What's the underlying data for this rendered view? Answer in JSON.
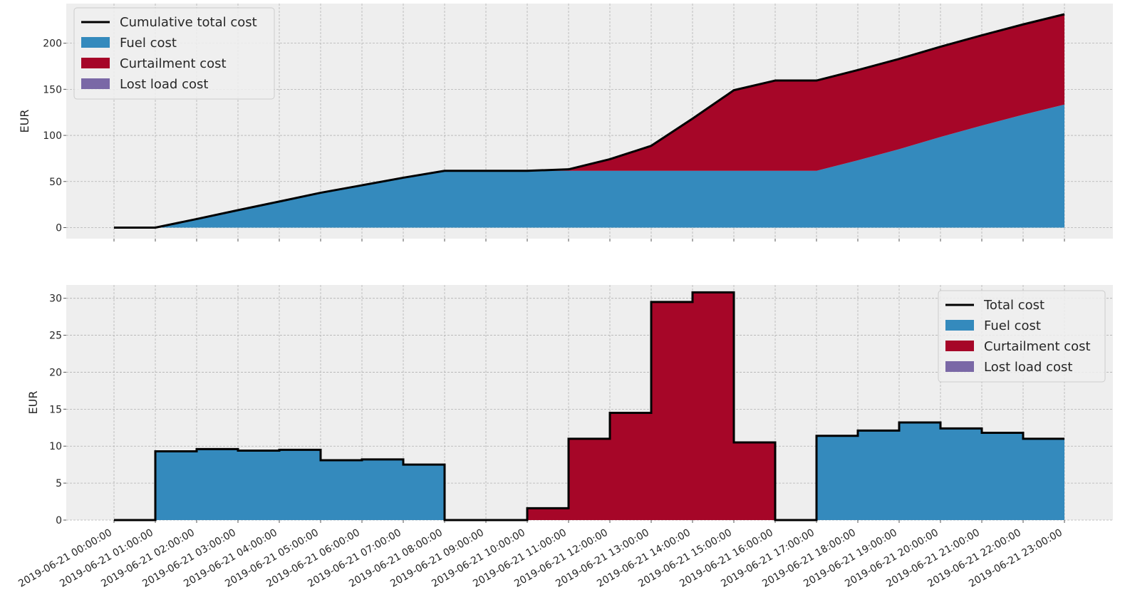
{
  "chart_data": [
    {
      "type": "area",
      "ylabel": "EUR",
      "ylim": [
        -12,
        243
      ],
      "yticks": [
        0,
        50,
        100,
        150,
        200
      ],
      "x": [
        "2019-06-21 00:00:00",
        "2019-06-21 01:00:00",
        "2019-06-21 02:00:00",
        "2019-06-21 03:00:00",
        "2019-06-21 04:00:00",
        "2019-06-21 05:00:00",
        "2019-06-21 06:00:00",
        "2019-06-21 07:00:00",
        "2019-06-21 08:00:00",
        "2019-06-21 09:00:00",
        "2019-06-21 10:00:00",
        "2019-06-21 11:00:00",
        "2019-06-21 12:00:00",
        "2019-06-21 13:00:00",
        "2019-06-21 14:00:00",
        "2019-06-21 15:00:00",
        "2019-06-21 16:00:00",
        "2019-06-21 17:00:00",
        "2019-06-21 18:00:00",
        "2019-06-21 19:00:00",
        "2019-06-21 20:00:00",
        "2019-06-21 21:00:00",
        "2019-06-21 22:00:00",
        "2019-06-21 23:00:00"
      ],
      "legend_position": "upper-left",
      "grid": true,
      "series": [
        {
          "name": "Cumulative total cost",
          "color": "#000000",
          "values": [
            0,
            0,
            9.3,
            18.9,
            28.3,
            37.8,
            45.9,
            54.1,
            61.6,
            61.6,
            61.6,
            63.2,
            74.2,
            88.7,
            118.2,
            149.0,
            159.5,
            159.5,
            170.9,
            183.0,
            196.2,
            208.6,
            220.4,
            231.4
          ]
        },
        {
          "name": "Fuel cost",
          "color": "#348abd",
          "values": [
            0,
            0,
            9.3,
            18.9,
            28.3,
            37.8,
            45.9,
            54.1,
            61.6,
            61.6,
            61.6,
            61.6,
            61.6,
            61.6,
            61.6,
            61.6,
            61.6,
            61.6,
            73.0,
            85.1,
            98.3,
            110.7,
            122.5,
            133.5
          ]
        },
        {
          "name": "Curtailment cost",
          "color": "#a60628",
          "values": [
            0,
            0,
            0,
            0,
            0,
            0,
            0,
            0,
            0,
            0,
            0,
            1.6,
            12.6,
            27.1,
            56.6,
            87.4,
            97.9,
            97.9,
            97.9,
            97.9,
            97.9,
            97.9,
            97.9,
            97.9
          ]
        },
        {
          "name": "Lost load cost",
          "color": "#7a68a6",
          "values": [
            0,
            0,
            0,
            0,
            0,
            0,
            0,
            0,
            0,
            0,
            0,
            0,
            0,
            0,
            0,
            0,
            0,
            0,
            0,
            0,
            0,
            0,
            0,
            0
          ]
        }
      ]
    },
    {
      "type": "bar",
      "ylabel": "EUR",
      "ylim": [
        0,
        31.8
      ],
      "yticks": [
        0,
        5,
        10,
        15,
        20,
        25,
        30
      ],
      "legend_position": "upper-right",
      "grid": true,
      "step_x": [
        "2019-06-21 00:00:00",
        "2019-06-21 01:00:00",
        "2019-06-21 02:00:00",
        "2019-06-21 03:00:00",
        "2019-06-21 04:00:00",
        "2019-06-21 05:00:00",
        "2019-06-21 06:00:00",
        "2019-06-21 07:00:00",
        "2019-06-21 08:00:00",
        "2019-06-21 09:00:00",
        "2019-06-21 10:00:00",
        "2019-06-21 11:00:00",
        "2019-06-21 12:00:00",
        "2019-06-21 13:00:00",
        "2019-06-21 14:00:00",
        "2019-06-21 15:00:00",
        "2019-06-21 16:00:00",
        "2019-06-21 17:00:00",
        "2019-06-21 18:00:00",
        "2019-06-21 19:00:00",
        "2019-06-21 20:00:00",
        "2019-06-21 21:00:00",
        "2019-06-21 22:00:00"
      ],
      "series": [
        {
          "name": "Total cost",
          "color": "#000000",
          "values": [
            0,
            9.3,
            9.6,
            9.4,
            9.5,
            8.1,
            8.2,
            7.5,
            0,
            0,
            1.6,
            11.0,
            14.5,
            29.5,
            30.8,
            10.5,
            0,
            11.4,
            12.1,
            13.2,
            12.4,
            11.8,
            11.0
          ]
        },
        {
          "name": "Fuel cost",
          "color": "#348abd",
          "values": [
            0,
            9.3,
            9.6,
            9.4,
            9.5,
            8.1,
            8.2,
            7.5,
            0,
            0,
            0,
            0,
            0,
            0,
            0,
            0,
            0,
            11.4,
            12.1,
            13.2,
            12.4,
            11.8,
            11.0
          ]
        },
        {
          "name": "Curtailment cost",
          "color": "#a60628",
          "values": [
            0,
            0,
            0,
            0,
            0,
            0,
            0,
            0,
            0,
            0,
            1.6,
            11.0,
            14.5,
            29.5,
            30.8,
            10.5,
            0,
            0,
            0,
            0,
            0,
            0,
            0
          ]
        },
        {
          "name": "Lost load cost",
          "color": "#7a68a6",
          "values": [
            0,
            0,
            0,
            0,
            0,
            0,
            0,
            0,
            0,
            0,
            0,
            0,
            0,
            0,
            0,
            0,
            0,
            0,
            0,
            0,
            0,
            0,
            0
          ]
        }
      ]
    }
  ]
}
